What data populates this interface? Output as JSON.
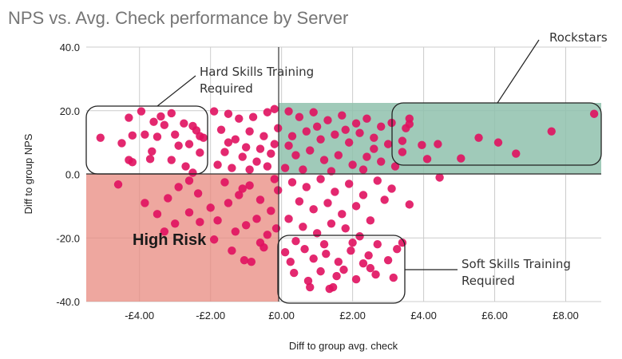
{
  "chart_data": {
    "type": "scatter",
    "title": "NPS vs. Avg. Check performance by Server",
    "xlabel": "Diff to group avg. check",
    "ylabel": "Diff to group NPS",
    "xlim": [
      -5.5,
      9
    ],
    "ylim": [
      -40,
      40
    ],
    "x_ticks": [
      "-£4.00",
      "-£2.00",
      "£0.00",
      "£2.00",
      "£4.00",
      "£6.00",
      "£8.00"
    ],
    "y_ticks": [
      "40.0",
      "20.0",
      "0.0",
      "-20.0",
      "-40.0"
    ],
    "grid": true,
    "colors": {
      "points": "#e0115f",
      "high_risk_region": "#e8897f",
      "rockstars_region": "#8fc1ad",
      "callout_border": "#222222"
    },
    "annotations": {
      "hard_skills": "Hard Skills Training Required",
      "rockstars": "Rockstars",
      "soft_skills": "Soft Skills Training Required",
      "high_risk": "High Risk"
    },
    "series": [
      {
        "values": [
          [
            -5.1,
            11.5
          ],
          [
            -4.5,
            9.8
          ],
          [
            -4.3,
            17.8
          ],
          [
            -4.2,
            12.2
          ],
          [
            -4.2,
            3.8
          ],
          [
            -3.95,
            19.8
          ],
          [
            -3.85,
            12.5
          ],
          [
            -3.6,
            16.5
          ],
          [
            -3.5,
            11.8
          ],
          [
            -3.4,
            18.2
          ],
          [
            -3.3,
            15.5
          ],
          [
            -3.1,
            19.2
          ],
          [
            -3.0,
            12.5
          ],
          [
            -2.9,
            9.0
          ],
          [
            -2.75,
            16.0
          ],
          [
            -2.6,
            9.5
          ],
          [
            -2.5,
            15.2
          ],
          [
            -2.4,
            13.8
          ],
          [
            -2.3,
            12.0
          ],
          [
            -2.2,
            11.5
          ],
          [
            -3.7,
            4.8
          ],
          [
            -3.1,
            4.5
          ],
          [
            -2.7,
            2.5
          ],
          [
            -2.5,
            0.5
          ],
          [
            -2.3,
            6.8
          ],
          [
            -4.3,
            4.5
          ],
          [
            -3.65,
            7.2
          ],
          [
            -1.9,
            19.8
          ],
          [
            -1.5,
            19.0
          ],
          [
            -1.2,
            17.5
          ],
          [
            -0.8,
            18.0
          ],
          [
            -0.4,
            19.5
          ],
          [
            -0.2,
            20.5
          ],
          [
            -1.7,
            14.0
          ],
          [
            -1.3,
            11.0
          ],
          [
            -0.9,
            13.5
          ],
          [
            -0.5,
            12.0
          ],
          [
            -0.2,
            9.5
          ],
          [
            -1.6,
            7.0
          ],
          [
            -1.1,
            5.5
          ],
          [
            -0.7,
            4.0
          ],
          [
            -0.3,
            6.5
          ],
          [
            -1.8,
            3.0
          ],
          [
            -1.4,
            2.0
          ],
          [
            -0.9,
            1.5
          ],
          [
            -0.4,
            2.5
          ],
          [
            -0.1,
            14.5
          ],
          [
            -1.0,
            8.5
          ],
          [
            -0.6,
            8.0
          ],
          [
            -1.5,
            10.0
          ],
          [
            0.2,
            19.8
          ],
          [
            0.5,
            18.0
          ],
          [
            0.9,
            19.5
          ],
          [
            1.3,
            17.0
          ],
          [
            1.7,
            18.5
          ],
          [
            2.1,
            16.0
          ],
          [
            2.4,
            17.5
          ],
          [
            2.8,
            15.0
          ],
          [
            3.1,
            16.2
          ],
          [
            3.5,
            14.5
          ],
          [
            0.3,
            12.0
          ],
          [
            0.7,
            13.5
          ],
          [
            1.1,
            11.0
          ],
          [
            1.5,
            12.5
          ],
          [
            1.9,
            10.0
          ],
          [
            2.2,
            13.0
          ],
          [
            2.6,
            11.5
          ],
          [
            3.0,
            9.5
          ],
          [
            0.4,
            6.0
          ],
          [
            0.8,
            7.5
          ],
          [
            1.2,
            4.5
          ],
          [
            1.6,
            6.0
          ],
          [
            2.0,
            3.0
          ],
          [
            2.4,
            5.5
          ],
          [
            2.8,
            4.0
          ],
          [
            3.2,
            2.5
          ],
          [
            0.1,
            2.0
          ],
          [
            0.6,
            1.5
          ],
          [
            1.4,
            1.0
          ],
          [
            2.3,
            1.5
          ],
          [
            1.0,
            15.0
          ],
          [
            1.8,
            14.0
          ],
          [
            2.6,
            8.0
          ],
          [
            0.2,
            9.0
          ],
          [
            3.4,
            7.0
          ],
          [
            3.6,
            17.5
          ],
          [
            3.6,
            15.8
          ],
          [
            3.4,
            10.5
          ],
          [
            3.95,
            9.2
          ],
          [
            4.1,
            4.8
          ],
          [
            4.4,
            9.5
          ],
          [
            5.05,
            5.0
          ],
          [
            5.55,
            11.5
          ],
          [
            6.1,
            10.0
          ],
          [
            6.6,
            6.5
          ],
          [
            7.6,
            13.5
          ],
          [
            8.8,
            19.0
          ],
          [
            4.45,
            -1.0
          ],
          [
            -4.6,
            -3.2
          ],
          [
            -3.85,
            -9.0
          ],
          [
            -3.5,
            -12.5
          ],
          [
            -3.3,
            -18.0
          ],
          [
            -3.2,
            -7.5
          ],
          [
            -2.9,
            -4.0
          ],
          [
            -2.6,
            -2.0
          ],
          [
            -2.35,
            -6.0
          ],
          [
            -2.0,
            -10.5
          ],
          [
            -1.8,
            -14.5
          ],
          [
            -1.5,
            -9.0
          ],
          [
            -1.2,
            -6.5
          ],
          [
            -0.9,
            -3.5
          ],
          [
            -0.6,
            -8.0
          ],
          [
            -0.3,
            -11.5
          ],
          [
            -0.1,
            -5.0
          ],
          [
            -1.6,
            -2.5
          ],
          [
            -1.3,
            -18.0
          ],
          [
            -1.0,
            -16.0
          ],
          [
            -0.7,
            -14.0
          ],
          [
            -0.4,
            -19.0
          ],
          [
            -0.15,
            -17.0
          ],
          [
            -2.3,
            -15.0
          ],
          [
            -1.9,
            -20.5
          ],
          [
            -1.4,
            -24.0
          ],
          [
            -1.05,
            -27.0
          ],
          [
            -0.85,
            -27.5
          ],
          [
            -0.6,
            -21.5
          ],
          [
            -2.6,
            -12.0
          ],
          [
            -3.0,
            -15.5
          ],
          [
            -0.2,
            -1.5
          ],
          [
            -0.5,
            -23.0
          ],
          [
            -1.1,
            -4.5
          ],
          [
            0.3,
            -2.5
          ],
          [
            0.7,
            -4.0
          ],
          [
            1.1,
            -1.5
          ],
          [
            1.5,
            -5.5
          ],
          [
            1.9,
            -3.0
          ],
          [
            2.3,
            -6.5
          ],
          [
            2.7,
            -2.0
          ],
          [
            3.1,
            -4.5
          ],
          [
            0.5,
            -8.5
          ],
          [
            0.9,
            -11.0
          ],
          [
            1.3,
            -9.0
          ],
          [
            1.7,
            -12.5
          ],
          [
            2.1,
            -10.0
          ],
          [
            2.5,
            -14.5
          ],
          [
            2.9,
            -8.0
          ],
          [
            0.2,
            -14.0
          ],
          [
            0.6,
            -16.5
          ],
          [
            1.0,
            -18.5
          ],
          [
            1.4,
            -15.5
          ],
          [
            1.8,
            -17.0
          ],
          [
            2.2,
            -19.5
          ],
          [
            3.6,
            -9.5
          ],
          [
            0.4,
            -21.0
          ],
          [
            1.2,
            -22.0
          ],
          [
            2.0,
            -21.5
          ],
          [
            0.25,
            -27.5
          ],
          [
            0.65,
            -23.5
          ],
          [
            0.9,
            -26.5
          ],
          [
            1.25,
            -25.0
          ],
          [
            1.6,
            -27.5
          ],
          [
            1.95,
            -24.0
          ],
          [
            2.45,
            -25.5
          ],
          [
            2.7,
            -22.0
          ],
          [
            3.0,
            -27.0
          ],
          [
            3.25,
            -23.5
          ],
          [
            0.35,
            -31.0
          ],
          [
            0.75,
            -33.5
          ],
          [
            1.1,
            -30.5
          ],
          [
            1.45,
            -35.5
          ],
          [
            1.75,
            -30.0
          ],
          [
            2.1,
            -33.0
          ],
          [
            2.5,
            -29.5
          ],
          [
            2.65,
            -31.5
          ],
          [
            3.15,
            -32.5
          ],
          [
            0.8,
            -35.5
          ],
          [
            1.35,
            -36.0
          ],
          [
            3.4,
            -21.5
          ],
          [
            0.1,
            -24.5
          ],
          [
            2.3,
            -28.0
          ],
          [
            1.55,
            -32.0
          ]
        ]
      }
    ]
  }
}
